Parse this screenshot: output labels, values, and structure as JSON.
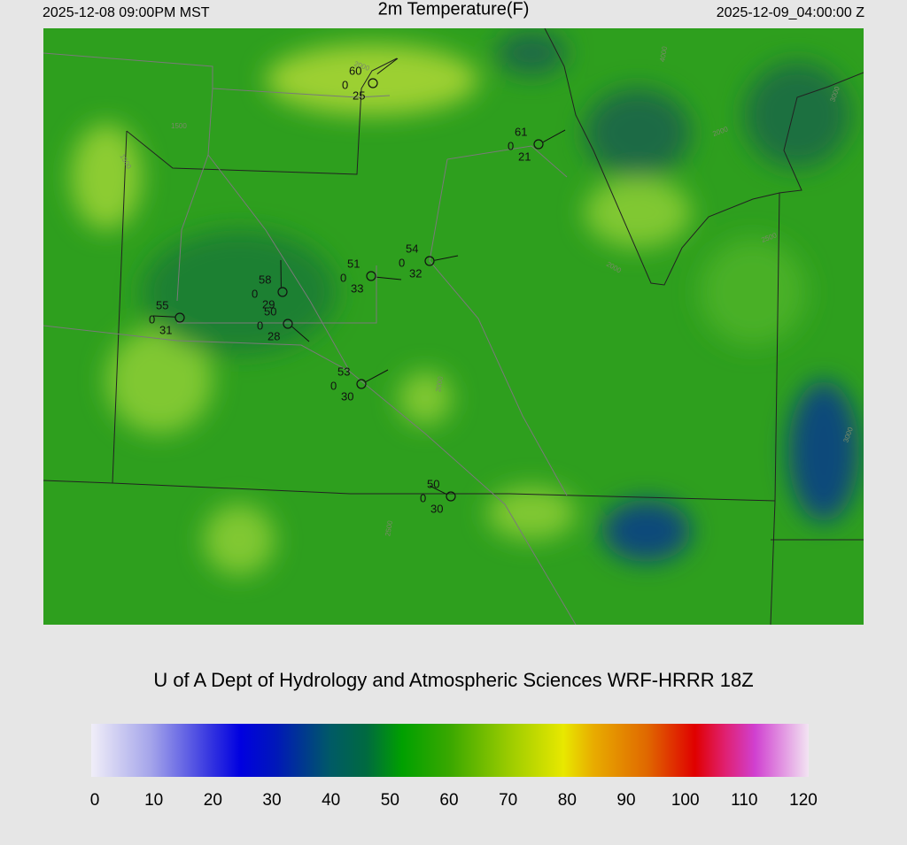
{
  "header": {
    "left": "2025-12-08 09:00PM MST",
    "title": "2m Temperature(F)",
    "right": "2025-12-09_04:00:00 Z"
  },
  "map": {
    "stations": [
      {
        "temp": 60,
        "mid": 0,
        "dew": 25
      },
      {
        "temp": 61,
        "mid": 0,
        "dew": 21
      },
      {
        "temp": 54,
        "mid": 0,
        "dew": 32
      },
      {
        "temp": 51,
        "mid": 0,
        "dew": 33
      },
      {
        "temp": 58,
        "mid": 0,
        "dew": 29
      },
      {
        "temp": 50,
        "mid": 0,
        "dew": 28
      },
      {
        "temp": 55,
        "mid": 0,
        "dew": 31
      },
      {
        "temp": 53,
        "mid": 0,
        "dew": 30
      },
      {
        "temp": 50,
        "mid": 0,
        "dew": 30
      }
    ],
    "contour_labels": [
      "1500",
      "2000",
      "1500",
      "4000",
      "3000",
      "2000",
      "2500",
      "2000",
      "3000",
      "2000",
      "2500"
    ]
  },
  "footer": "U of A Dept of Hydrology and Atmospheric Sciences WRF-HRRR 18Z",
  "colorbar": {
    "lim": [
      0,
      120
    ],
    "ticks": [
      0,
      10,
      20,
      30,
      40,
      50,
      60,
      70,
      80,
      90,
      100,
      110,
      120
    ],
    "stops": [
      {
        "value": 0,
        "color": "#f0eef8"
      },
      {
        "value": 10,
        "color": "#a4a4ea"
      },
      {
        "value": 20,
        "color": "#3434e0"
      },
      {
        "value": 25,
        "color": "#0000e0"
      },
      {
        "value": 31,
        "color": "#0018b8"
      },
      {
        "value": 40,
        "color": "#005a66"
      },
      {
        "value": 46,
        "color": "#006a40"
      },
      {
        "value": 52,
        "color": "#00a000"
      },
      {
        "value": 60,
        "color": "#3aa800"
      },
      {
        "value": 70,
        "color": "#9ccc00"
      },
      {
        "value": 79,
        "color": "#e8e800"
      },
      {
        "value": 84,
        "color": "#e8ac00"
      },
      {
        "value": 93,
        "color": "#e06800"
      },
      {
        "value": 101,
        "color": "#e00000"
      },
      {
        "value": 106,
        "color": "#e02070"
      },
      {
        "value": 111,
        "color": "#d040d0"
      },
      {
        "value": 120,
        "color": "#f2e4f2"
      }
    ]
  }
}
